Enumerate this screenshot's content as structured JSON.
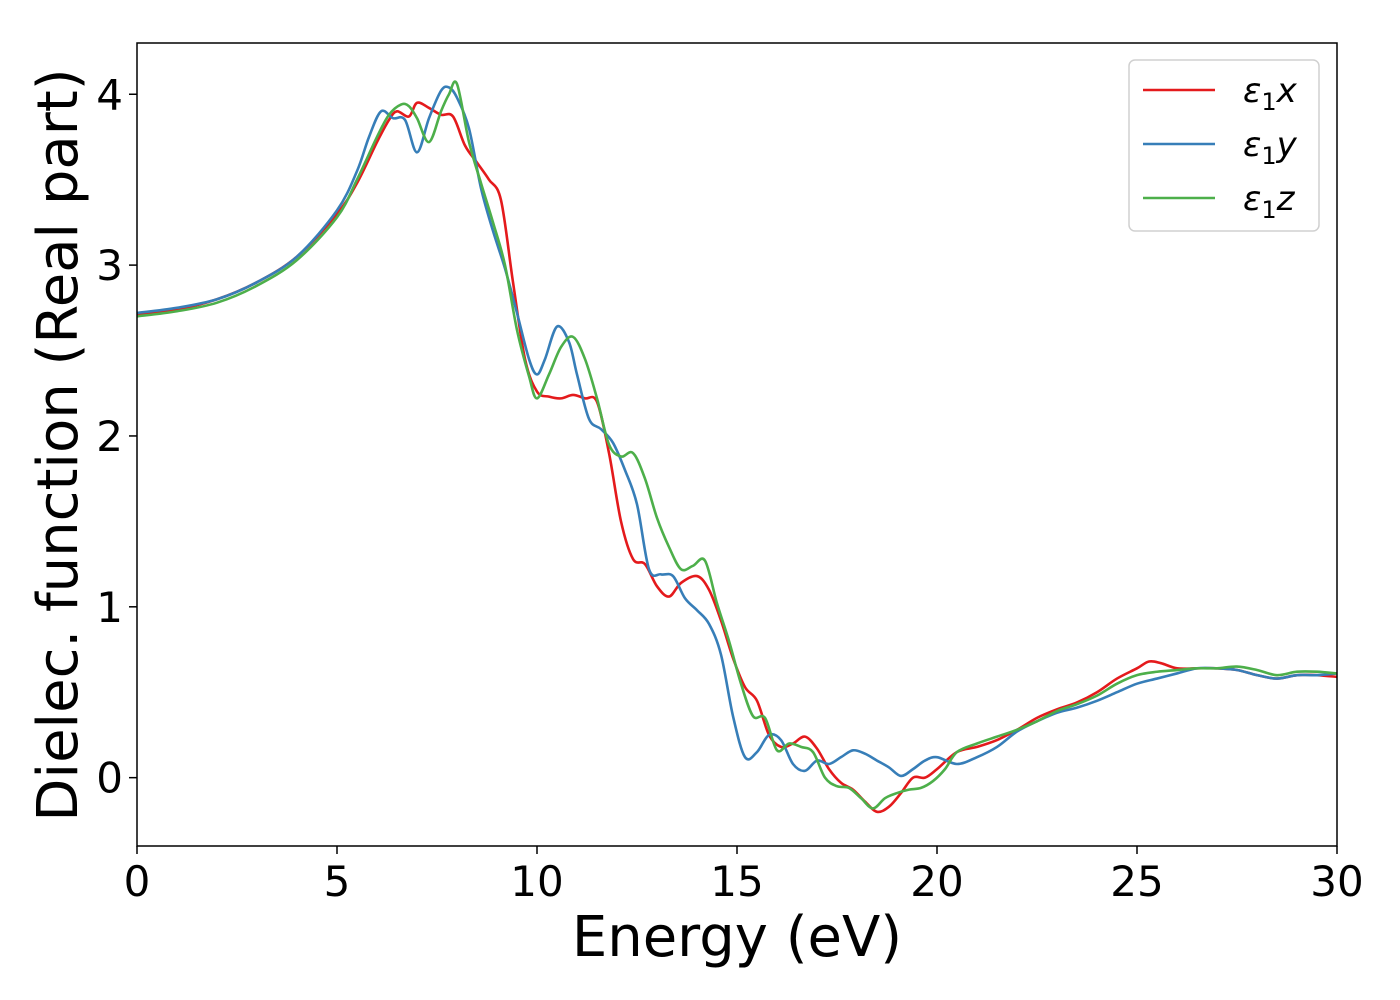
{
  "chart_data": {
    "type": "line",
    "xlabel": "Energy (eV)",
    "ylabel": "Dielec. function (Real part)",
    "xlim": [
      0,
      30
    ],
    "ylim": [
      -0.4,
      4.3
    ],
    "xticks": [
      0,
      5,
      10,
      15,
      20,
      25,
      30
    ],
    "yticks": [
      0,
      1,
      2,
      3,
      4
    ],
    "legend_position": "top-right",
    "grid": false,
    "series": [
      {
        "name": "ε1x",
        "legend_base": "ε",
        "legend_sub": "1",
        "legend_var": "x",
        "color": "#e41a1c",
        "x": [
          0,
          1,
          2,
          3,
          4,
          5,
          5.5,
          6,
          6.3,
          6.5,
          6.8,
          7,
          7.3,
          7.6,
          7.9,
          8.2,
          8.5,
          8.8,
          9.1,
          9.4,
          9.7,
          10,
          10.3,
          10.6,
          10.9,
          11.2,
          11.5,
          11.8,
          12.1,
          12.4,
          12.7,
          13,
          13.3,
          13.6,
          14,
          14.3,
          14.6,
          14.9,
          15.2,
          15.5,
          15.8,
          16.1,
          16.4,
          16.7,
          17,
          17.3,
          17.6,
          17.9,
          18.2,
          18.5,
          18.8,
          19.1,
          19.4,
          19.7,
          20,
          20.5,
          21,
          21.5,
          22,
          22.5,
          23,
          23.5,
          24,
          24.5,
          25,
          25.3,
          25.6,
          26,
          26.5,
          27,
          27.5,
          28,
          28.5,
          29,
          29.5,
          30
        ],
        "y": [
          2.71,
          2.74,
          2.8,
          2.9,
          3.05,
          3.3,
          3.48,
          3.72,
          3.85,
          3.9,
          3.87,
          3.95,
          3.92,
          3.88,
          3.87,
          3.7,
          3.6,
          3.5,
          3.38,
          2.9,
          2.45,
          2.26,
          2.23,
          2.22,
          2.24,
          2.22,
          2.2,
          1.9,
          1.5,
          1.28,
          1.25,
          1.12,
          1.06,
          1.14,
          1.18,
          1.1,
          0.92,
          0.7,
          0.53,
          0.45,
          0.25,
          0.18,
          0.2,
          0.24,
          0.17,
          0.05,
          -0.03,
          -0.07,
          -0.14,
          -0.2,
          -0.17,
          -0.09,
          0,
          0,
          0.05,
          0.15,
          0.18,
          0.22,
          0.28,
          0.35,
          0.4,
          0.44,
          0.5,
          0.58,
          0.64,
          0.68,
          0.67,
          0.64,
          0.64,
          0.64,
          0.63,
          0.6,
          0.58,
          0.6,
          0.6,
          0.59
        ]
      },
      {
        "name": "ε1y",
        "legend_base": "ε",
        "legend_sub": "1",
        "legend_var": "y",
        "color": "#377eb8",
        "x": [
          0,
          1,
          2,
          3,
          4,
          5,
          5.5,
          5.8,
          6.1,
          6.4,
          6.7,
          7,
          7.3,
          7.6,
          7.8,
          8,
          8.3,
          8.6,
          8.9,
          9.2,
          9.5,
          9.8,
          10,
          10.2,
          10.5,
          10.8,
          11,
          11.3,
          11.6,
          11.9,
          12.2,
          12.5,
          12.8,
          13.1,
          13.4,
          13.7,
          14,
          14.3,
          14.6,
          14.9,
          15.2,
          15.5,
          15.8,
          16.1,
          16.4,
          16.7,
          17,
          17.3,
          17.6,
          17.9,
          18.2,
          18.5,
          18.8,
          19.1,
          19.4,
          19.7,
          20,
          20.5,
          21,
          21.5,
          22,
          22.5,
          23,
          23.5,
          24,
          24.5,
          25,
          25.5,
          26,
          26.5,
          27,
          27.5,
          28,
          28.5,
          29,
          29.5,
          30
        ],
        "y": [
          2.72,
          2.75,
          2.8,
          2.9,
          3.05,
          3.32,
          3.55,
          3.75,
          3.9,
          3.86,
          3.85,
          3.66,
          3.86,
          4.02,
          4.04,
          3.98,
          3.8,
          3.45,
          3.2,
          2.98,
          2.72,
          2.45,
          2.36,
          2.45,
          2.64,
          2.55,
          2.36,
          2.1,
          2.04,
          1.96,
          1.8,
          1.6,
          1.22,
          1.19,
          1.18,
          1.05,
          0.98,
          0.9,
          0.72,
          0.36,
          0.12,
          0.15,
          0.25,
          0.22,
          0.08,
          0.04,
          0.1,
          0.08,
          0.12,
          0.16,
          0.14,
          0.1,
          0.06,
          0.01,
          0.05,
          0.1,
          0.12,
          0.08,
          0.12,
          0.18,
          0.27,
          0.33,
          0.38,
          0.41,
          0.45,
          0.5,
          0.55,
          0.58,
          0.61,
          0.64,
          0.64,
          0.63,
          0.6,
          0.58,
          0.6,
          0.6,
          0.61
        ]
      },
      {
        "name": "ε1z",
        "legend_base": "ε",
        "legend_sub": "1",
        "legend_var": "z",
        "color": "#4daf4a",
        "x": [
          0,
          1,
          2,
          3,
          4,
          5,
          5.5,
          6,
          6.3,
          6.6,
          6.8,
          7,
          7.3,
          7.6,
          7.8,
          8,
          8.3,
          8.6,
          8.9,
          9.2,
          9.5,
          9.8,
          10,
          10.3,
          10.6,
          10.9,
          11.2,
          11.5,
          11.8,
          12.1,
          12.4,
          12.7,
          13,
          13.3,
          13.6,
          13.9,
          14.2,
          14.5,
          14.8,
          15.1,
          15.4,
          15.7,
          16,
          16.3,
          16.6,
          16.9,
          17.2,
          17.5,
          17.8,
          18.1,
          18.4,
          18.7,
          19,
          19.3,
          19.6,
          19.9,
          20.2,
          20.5,
          21,
          21.5,
          22,
          22.5,
          23,
          23.5,
          24,
          24.5,
          25,
          25.5,
          26,
          26.5,
          27,
          27.5,
          28,
          28.5,
          29,
          29.5,
          30
        ],
        "y": [
          2.7,
          2.73,
          2.78,
          2.88,
          3.03,
          3.28,
          3.5,
          3.75,
          3.88,
          3.94,
          3.93,
          3.86,
          3.72,
          3.9,
          4.0,
          4.06,
          3.72,
          3.48,
          3.25,
          3.0,
          2.62,
          2.35,
          2.22,
          2.36,
          2.52,
          2.58,
          2.45,
          2.22,
          1.95,
          1.88,
          1.9,
          1.75,
          1.52,
          1.35,
          1.22,
          1.24,
          1.27,
          1.02,
          0.8,
          0.55,
          0.36,
          0.35,
          0.16,
          0.2,
          0.18,
          0.15,
          0.0,
          -0.05,
          -0.06,
          -0.12,
          -0.18,
          -0.12,
          -0.09,
          -0.07,
          -0.06,
          -0.02,
          0.05,
          0.15,
          0.2,
          0.24,
          0.28,
          0.33,
          0.39,
          0.43,
          0.48,
          0.55,
          0.6,
          0.62,
          0.63,
          0.64,
          0.64,
          0.65,
          0.63,
          0.6,
          0.62,
          0.62,
          0.61
        ]
      }
    ]
  }
}
